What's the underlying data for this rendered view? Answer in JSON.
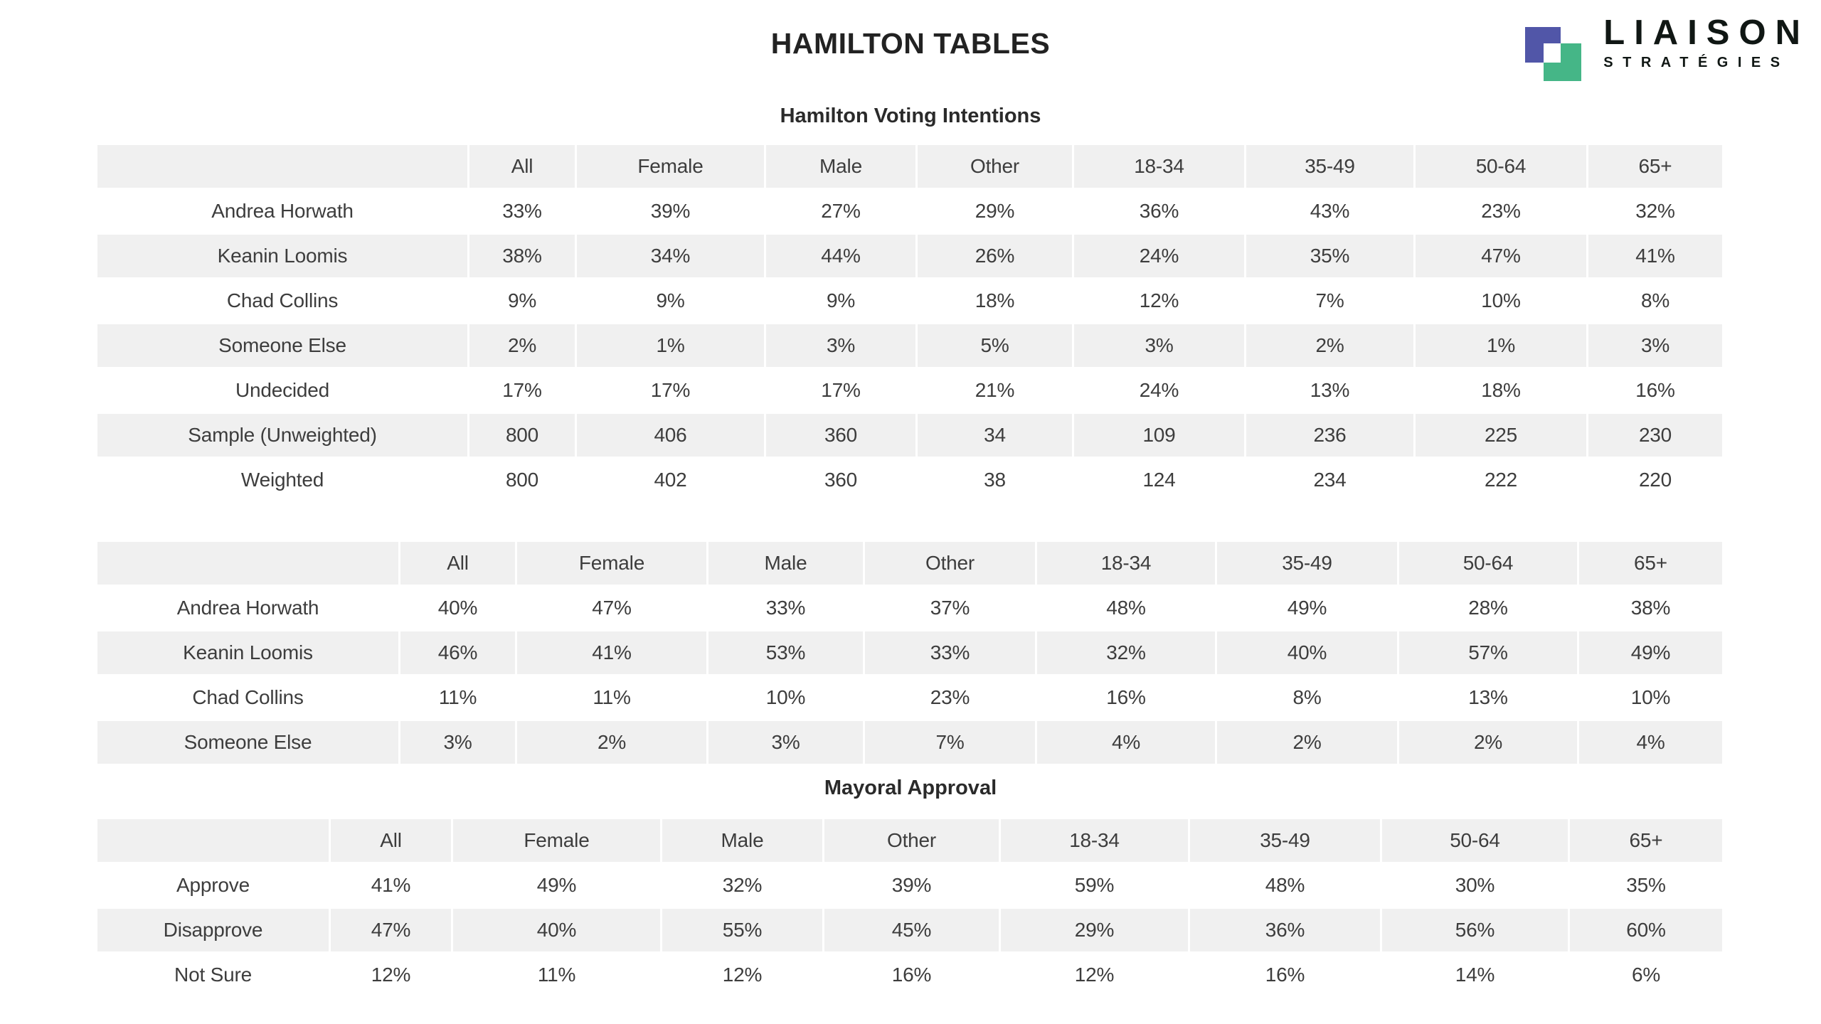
{
  "page_title": "HAMILTON TABLES",
  "logo": {
    "name": "LIAISON",
    "subname": "STRATÉGIES",
    "blue_square_color": "#5156a8",
    "green_square_color": "#45b687"
  },
  "colors": {
    "row_shade": "#f0f0f0",
    "text": "#3d3d3d",
    "title_text": "#222222"
  },
  "tables": [
    {
      "title": "Hamilton Voting Intentions",
      "columns": [
        "",
        "All",
        "Female",
        "Male",
        "Other",
        "18-34",
        "35-49",
        "50-64",
        "65+"
      ],
      "rows": [
        [
          "Andrea Horwath",
          "33%",
          "39%",
          "27%",
          "29%",
          "36%",
          "43%",
          "23%",
          "32%"
        ],
        [
          "Keanin Loomis",
          "38%",
          "34%",
          "44%",
          "26%",
          "24%",
          "35%",
          "47%",
          "41%"
        ],
        [
          "Chad Collins",
          "9%",
          "9%",
          "9%",
          "18%",
          "12%",
          "7%",
          "10%",
          "8%"
        ],
        [
          "Someone Else",
          "2%",
          "1%",
          "3%",
          "5%",
          "3%",
          "2%",
          "1%",
          "3%"
        ],
        [
          "Undecided",
          "17%",
          "17%",
          "17%",
          "21%",
          "24%",
          "13%",
          "18%",
          "16%"
        ],
        [
          "Sample (Unweighted)",
          "800",
          "406",
          "360",
          "34",
          "109",
          "236",
          "225",
          "230"
        ],
        [
          "Weighted",
          "800",
          "402",
          "360",
          "38",
          "124",
          "234",
          "222",
          "220"
        ]
      ]
    },
    {
      "title": "",
      "columns": [
        "",
        "All",
        "Female",
        "Male",
        "Other",
        "18-34",
        "35-49",
        "50-64",
        "65+"
      ],
      "rows": [
        [
          "Andrea Horwath",
          "40%",
          "47%",
          "33%",
          "37%",
          "48%",
          "49%",
          "28%",
          "38%"
        ],
        [
          "Keanin Loomis",
          "46%",
          "41%",
          "53%",
          "33%",
          "32%",
          "40%",
          "57%",
          "49%"
        ],
        [
          "Chad Collins",
          "11%",
          "11%",
          "10%",
          "23%",
          "16%",
          "8%",
          "13%",
          "10%"
        ],
        [
          "Someone Else",
          "3%",
          "2%",
          "3%",
          "7%",
          "4%",
          "2%",
          "2%",
          "4%"
        ]
      ]
    },
    {
      "title": "Mayoral Approval",
      "columns": [
        "",
        "All",
        "Female",
        "Male",
        "Other",
        "18-34",
        "35-49",
        "50-64",
        "65+"
      ],
      "rows": [
        [
          "Approve",
          "41%",
          "49%",
          "32%",
          "39%",
          "59%",
          "48%",
          "30%",
          "35%"
        ],
        [
          "Disapprove",
          "47%",
          "40%",
          "55%",
          "45%",
          "29%",
          "36%",
          "56%",
          "60%"
        ],
        [
          "Not Sure",
          "12%",
          "11%",
          "12%",
          "16%",
          "12%",
          "16%",
          "14%",
          "6%"
        ]
      ]
    }
  ]
}
